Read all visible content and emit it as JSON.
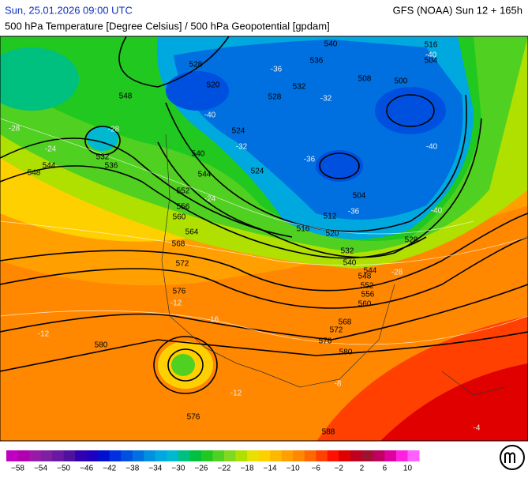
{
  "header": {
    "date": "Sun, 25.01.2026 09:00 UTC",
    "model": "GFS (NOAA) Sun 12 + 165h",
    "subtitle": "500 hPa Temperature [Degree Celsius] / 500 hPa Geopotential [gpdam]"
  },
  "colorbar": {
    "lim": [
      -60,
      12
    ],
    "colors": [
      "#c000c0",
      "#b000b0",
      "#9a1aa8",
      "#8020a0",
      "#6a1aa0",
      "#5010a0",
      "#3000b0",
      "#2000c0",
      "#0010d0",
      "#0030e0",
      "#0050e0",
      "#0070e0",
      "#0090e0",
      "#00a8e0",
      "#00b8d0",
      "#00c080",
      "#00c040",
      "#20c820",
      "#50d020",
      "#80d820",
      "#b0e000",
      "#e8e000",
      "#ffd000",
      "#ffb800",
      "#ffa000",
      "#ff8800",
      "#ff6800",
      "#ff4000",
      "#ff1000",
      "#e00000",
      "#c00020",
      "#a01030",
      "#c00060",
      "#e000a0",
      "#ff20e0",
      "#ff60ff"
    ],
    "ticks": [
      {
        "value": -58,
        "label": "−58"
      },
      {
        "value": -54,
        "label": "−54"
      },
      {
        "value": -50,
        "label": "−50"
      },
      {
        "value": -46,
        "label": "−46"
      },
      {
        "value": -42,
        "label": "−42"
      },
      {
        "value": -38,
        "label": "−38"
      },
      {
        "value": -34,
        "label": "−34"
      },
      {
        "value": -30,
        "label": "−30"
      },
      {
        "value": -26,
        "label": "−26"
      },
      {
        "value": -22,
        "label": "−22"
      },
      {
        "value": -18,
        "label": "−18"
      },
      {
        "value": -14,
        "label": "−14"
      },
      {
        "value": -10,
        "label": "−10"
      },
      {
        "value": -6,
        "label": "−6"
      },
      {
        "value": -2,
        "label": "−2"
      },
      2,
      6,
      10
    ]
  },
  "contour_labels": [
    "548",
    "532",
    "536",
    "544",
    "548",
    "552",
    "556",
    "560",
    "564",
    "568",
    "572",
    "576",
    "580",
    "576",
    "588",
    "528",
    "520",
    "524",
    "528",
    "532",
    "536",
    "540",
    "544",
    "540",
    "524",
    "516",
    "512",
    "504",
    "508",
    "500",
    "504",
    "516",
    "520",
    "528",
    "532",
    "540",
    "544",
    "548",
    "552",
    "556",
    "560",
    "568",
    "572",
    "576",
    "580"
  ],
  "isotherm_labels": [
    "-28",
    "-24",
    "-28",
    "-36",
    "-40",
    "-32",
    "-36",
    "-40",
    "-36",
    "-40",
    "-24",
    "-12",
    "-16",
    "-12",
    "-8",
    "-4",
    "-12",
    "-40",
    "-32",
    "-28"
  ]
}
